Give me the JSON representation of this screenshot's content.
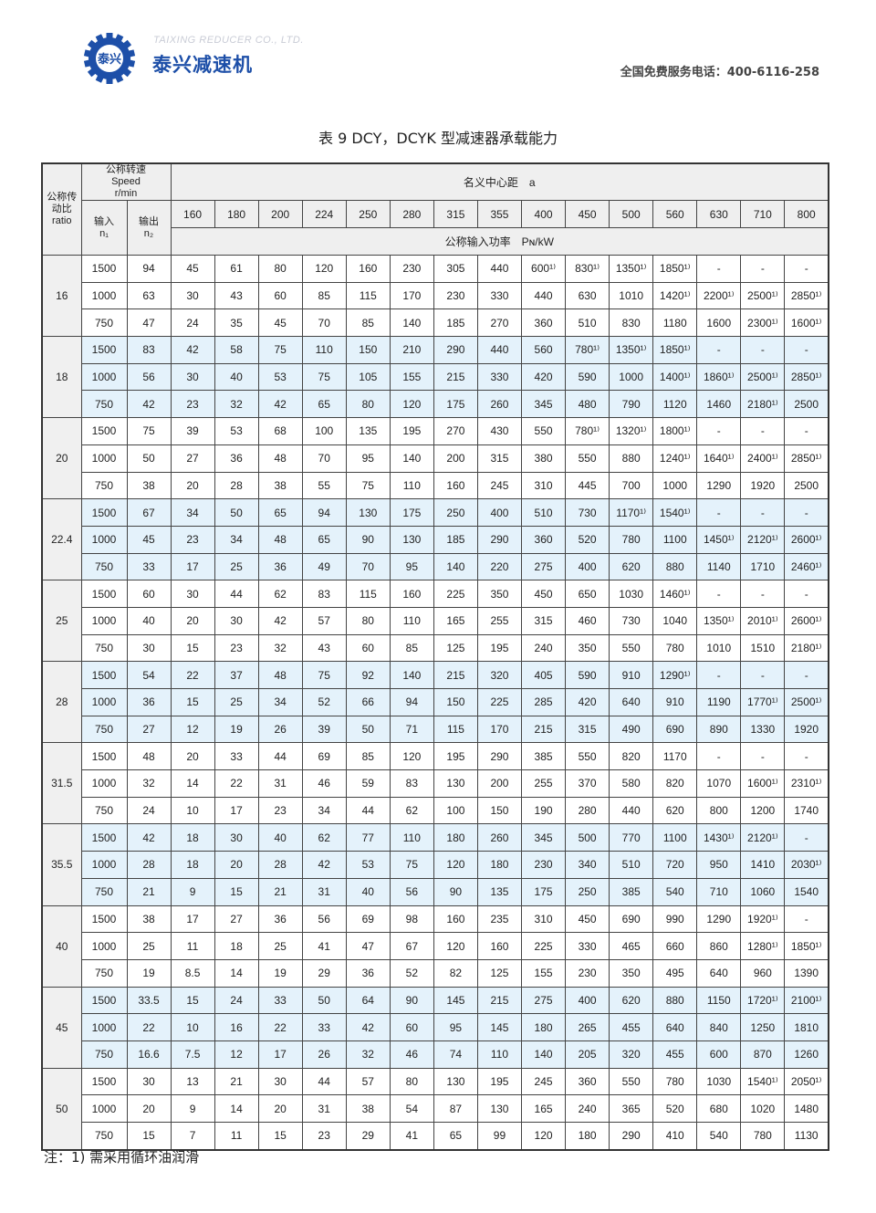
{
  "header": {
    "company_en": "TAIXING REDUCER CO., LTD.",
    "company_cn": "泰兴减速机",
    "logo_text": "泰兴",
    "hotline": "全国免费服务电话：400-6116-258"
  },
  "title": "表 9  DCY，DCYK 型减速器承载能力",
  "table": {
    "ratio_header": "公称传动比 ratio",
    "speed_header": "公称转速",
    "speed_header_en": "Speed",
    "speed_unit": "r/min",
    "n1_header": "输入",
    "n1_sym": "n₁",
    "n2_header": "输出",
    "n2_sym": "n₂",
    "center_header": "名义中心距　a",
    "power_header": "公称输入功率　Pɴ/kW",
    "centers": [
      "160",
      "180",
      "200",
      "224",
      "250",
      "280",
      "315",
      "355",
      "400",
      "450",
      "500",
      "560",
      "630",
      "710",
      "800"
    ],
    "groups": [
      {
        "ratio": "16",
        "rows": [
          [
            "1500",
            "94",
            "45",
            "61",
            "80",
            "120",
            "160",
            "230",
            "305",
            "440",
            "600¹⁾",
            "830¹⁾",
            "1350¹⁾",
            "1850¹⁾",
            "-",
            "-",
            "-"
          ],
          [
            "1000",
            "63",
            "30",
            "43",
            "60",
            "85",
            "115",
            "170",
            "230",
            "330",
            "440",
            "630",
            "1010",
            "1420¹⁾",
            "2200¹⁾",
            "2500¹⁾",
            "2850¹⁾"
          ],
          [
            "750",
            "47",
            "24",
            "35",
            "45",
            "70",
            "85",
            "140",
            "185",
            "270",
            "360",
            "510",
            "830",
            "1180",
            "1600",
            "2300¹⁾",
            "1600¹⁾"
          ]
        ]
      },
      {
        "ratio": "18",
        "rows": [
          [
            "1500",
            "83",
            "42",
            "58",
            "75",
            "110",
            "150",
            "210",
            "290",
            "440",
            "560",
            "780¹⁾",
            "1350¹⁾",
            "1850¹⁾",
            "-",
            "-",
            "-"
          ],
          [
            "1000",
            "56",
            "30",
            "40",
            "53",
            "75",
            "105",
            "155",
            "215",
            "330",
            "420",
            "590",
            "1000",
            "1400¹⁾",
            "1860¹⁾",
            "2500¹⁾",
            "2850¹⁾"
          ],
          [
            "750",
            "42",
            "23",
            "32",
            "42",
            "65",
            "80",
            "120",
            "175",
            "260",
            "345",
            "480",
            "790",
            "1120",
            "1460",
            "2180¹⁾",
            "2500"
          ]
        ]
      },
      {
        "ratio": "20",
        "rows": [
          [
            "1500",
            "75",
            "39",
            "53",
            "68",
            "100",
            "135",
            "195",
            "270",
            "430",
            "550",
            "780¹⁾",
            "1320¹⁾",
            "1800¹⁾",
            "-",
            "-",
            "-"
          ],
          [
            "1000",
            "50",
            "27",
            "36",
            "48",
            "70",
            "95",
            "140",
            "200",
            "315",
            "380",
            "550",
            "880",
            "1240¹⁾",
            "1640¹⁾",
            "2400¹⁾",
            "2850¹⁾"
          ],
          [
            "750",
            "38",
            "20",
            "28",
            "38",
            "55",
            "75",
            "110",
            "160",
            "245",
            "310",
            "445",
            "700",
            "1000",
            "1290",
            "1920",
            "2500"
          ]
        ]
      },
      {
        "ratio": "22.4",
        "rows": [
          [
            "1500",
            "67",
            "34",
            "50",
            "65",
            "94",
            "130",
            "175",
            "250",
            "400",
            "510",
            "730",
            "1170¹⁾",
            "1540¹⁾",
            "-",
            "-",
            "-"
          ],
          [
            "1000",
            "45",
            "23",
            "34",
            "48",
            "65",
            "90",
            "130",
            "185",
            "290",
            "360",
            "520",
            "780",
            "1100",
            "1450¹⁾",
            "2120¹⁾",
            "2600¹⁾"
          ],
          [
            "750",
            "33",
            "17",
            "25",
            "36",
            "49",
            "70",
            "95",
            "140",
            "220",
            "275",
            "400",
            "620",
            "880",
            "1140",
            "1710",
            "2460¹⁾"
          ]
        ]
      },
      {
        "ratio": "25",
        "rows": [
          [
            "1500",
            "60",
            "30",
            "44",
            "62",
            "83",
            "115",
            "160",
            "225",
            "350",
            "450",
            "650",
            "1030",
            "1460¹⁾",
            "-",
            "-",
            "-"
          ],
          [
            "1000",
            "40",
            "20",
            "30",
            "42",
            "57",
            "80",
            "110",
            "165",
            "255",
            "315",
            "460",
            "730",
            "1040",
            "1350¹⁾",
            "2010¹⁾",
            "2600¹⁾"
          ],
          [
            "750",
            "30",
            "15",
            "23",
            "32",
            "43",
            "60",
            "85",
            "125",
            "195",
            "240",
            "350",
            "550",
            "780",
            "1010",
            "1510",
            "2180¹⁾"
          ]
        ]
      },
      {
        "ratio": "28",
        "rows": [
          [
            "1500",
            "54",
            "22",
            "37",
            "48",
            "75",
            "92",
            "140",
            "215",
            "320",
            "405",
            "590",
            "910",
            "1290¹⁾",
            "-",
            "-",
            "-"
          ],
          [
            "1000",
            "36",
            "15",
            "25",
            "34",
            "52",
            "66",
            "94",
            "150",
            "225",
            "285",
            "420",
            "640",
            "910",
            "1190",
            "1770¹⁾",
            "2500¹⁾"
          ],
          [
            "750",
            "27",
            "12",
            "19",
            "26",
            "39",
            "50",
            "71",
            "115",
            "170",
            "215",
            "315",
            "490",
            "690",
            "890",
            "1330",
            "1920"
          ]
        ]
      },
      {
        "ratio": "31.5",
        "rows": [
          [
            "1500",
            "48",
            "20",
            "33",
            "44",
            "69",
            "85",
            "120",
            "195",
            "290",
            "385",
            "550",
            "820",
            "1170",
            "-",
            "-",
            "-"
          ],
          [
            "1000",
            "32",
            "14",
            "22",
            "31",
            "46",
            "59",
            "83",
            "130",
            "200",
            "255",
            "370",
            "580",
            "820",
            "1070",
            "1600¹⁾",
            "2310¹⁾"
          ],
          [
            "750",
            "24",
            "10",
            "17",
            "23",
            "34",
            "44",
            "62",
            "100",
            "150",
            "190",
            "280",
            "440",
            "620",
            "800",
            "1200",
            "1740"
          ]
        ]
      },
      {
        "ratio": "35.5",
        "rows": [
          [
            "1500",
            "42",
            "18",
            "30",
            "40",
            "62",
            "77",
            "110",
            "180",
            "260",
            "345",
            "500",
            "770",
            "1100",
            "1430¹⁾",
            "2120¹⁾",
            "-"
          ],
          [
            "1000",
            "28",
            "18",
            "20",
            "28",
            "42",
            "53",
            "75",
            "120",
            "180",
            "230",
            "340",
            "510",
            "720",
            "950",
            "1410",
            "2030¹⁾"
          ],
          [
            "750",
            "21",
            "9",
            "15",
            "21",
            "31",
            "40",
            "56",
            "90",
            "135",
            "175",
            "250",
            "385",
            "540",
            "710",
            "1060",
            "1540"
          ]
        ]
      },
      {
        "ratio": "40",
        "rows": [
          [
            "1500",
            "38",
            "17",
            "27",
            "36",
            "56",
            "69",
            "98",
            "160",
            "235",
            "310",
            "450",
            "690",
            "990",
            "1290",
            "1920¹⁾",
            "-"
          ],
          [
            "1000",
            "25",
            "11",
            "18",
            "25",
            "41",
            "47",
            "67",
            "120",
            "160",
            "225",
            "330",
            "465",
            "660",
            "860",
            "1280¹⁾",
            "1850¹⁾"
          ],
          [
            "750",
            "19",
            "8.5",
            "14",
            "19",
            "29",
            "36",
            "52",
            "82",
            "125",
            "155",
            "230",
            "350",
            "495",
            "640",
            "960",
            "1390"
          ]
        ]
      },
      {
        "ratio": "45",
        "rows": [
          [
            "1500",
            "33.5",
            "15",
            "24",
            "33",
            "50",
            "64",
            "90",
            "145",
            "215",
            "275",
            "400",
            "620",
            "880",
            "1150",
            "1720¹⁾",
            "2100¹⁾"
          ],
          [
            "1000",
            "22",
            "10",
            "16",
            "22",
            "33",
            "42",
            "60",
            "95",
            "145",
            "180",
            "265",
            "455",
            "640",
            "840",
            "1250",
            "1810"
          ],
          [
            "750",
            "16.6",
            "7.5",
            "12",
            "17",
            "26",
            "32",
            "46",
            "74",
            "110",
            "140",
            "205",
            "320",
            "455",
            "600",
            "870",
            "1260"
          ]
        ]
      },
      {
        "ratio": "50",
        "rows": [
          [
            "1500",
            "30",
            "13",
            "21",
            "30",
            "44",
            "57",
            "80",
            "130",
            "195",
            "245",
            "360",
            "550",
            "780",
            "1030",
            "1540¹⁾",
            "2050¹⁾"
          ],
          [
            "1000",
            "20",
            "9",
            "14",
            "20",
            "31",
            "38",
            "54",
            "87",
            "130",
            "165",
            "240",
            "365",
            "520",
            "680",
            "1020",
            "1480"
          ],
          [
            "750",
            "15",
            "7",
            "11",
            "15",
            "23",
            "29",
            "41",
            "65",
            "99",
            "120",
            "180",
            "290",
            "410",
            "540",
            "780",
            "1130"
          ]
        ]
      }
    ]
  },
  "note": "注：1) 需采用循环油润滑",
  "colors": {
    "brand": "#1d4fa8",
    "band": "#e4f2fb",
    "header_bg": "#efefef"
  }
}
